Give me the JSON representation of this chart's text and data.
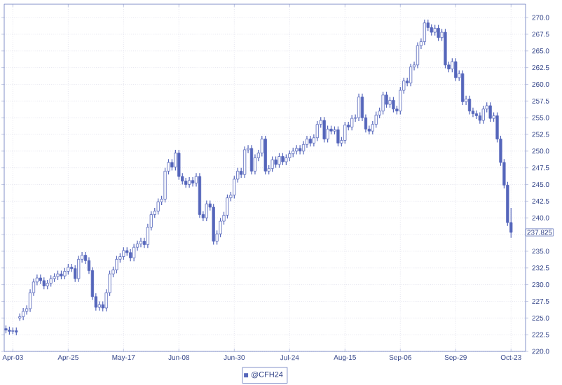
{
  "chart_data": {
    "type": "candlestick",
    "categories": [
      null,
      null,
      "Apr-03",
      null,
      null,
      null,
      null,
      null,
      null,
      null,
      null,
      null,
      null,
      null,
      null,
      null,
      null,
      null,
      "Apr-25",
      null,
      null,
      null,
      null,
      null,
      null,
      null,
      null,
      null,
      null,
      null,
      null,
      null,
      null,
      null,
      "May-17",
      null,
      null,
      null,
      null,
      null,
      null,
      null,
      null,
      null,
      null,
      null,
      null,
      null,
      null,
      null,
      "Jun-08",
      null,
      null,
      null,
      null,
      null,
      null,
      null,
      null,
      null,
      null,
      null,
      null,
      null,
      null,
      null,
      "Jun-30",
      null,
      null,
      null,
      null,
      null,
      null,
      null,
      null,
      null,
      null,
      null,
      null,
      null,
      null,
      null,
      "Jul-24",
      null,
      null,
      null,
      null,
      null,
      null,
      null,
      null,
      null,
      null,
      null,
      null,
      null,
      null,
      null,
      "Aug-15",
      null,
      null,
      null,
      null,
      null,
      null,
      null,
      null,
      null,
      null,
      null,
      null,
      null,
      null,
      null,
      "Sep-06",
      null,
      null,
      null,
      null,
      null,
      null,
      null,
      null,
      null,
      null,
      null,
      null,
      null,
      null,
      null,
      "Sep-29",
      null,
      null,
      null,
      null,
      null,
      null,
      null,
      null,
      null,
      null,
      null,
      null,
      null,
      null,
      null,
      "Oct-23"
    ],
    "series": [
      {
        "name": "@CFH24",
        "color": "#5566bb",
        "ohlc": [
          [
            223.4,
            223.9,
            222.7,
            223.2
          ],
          [
            223.2,
            223.7,
            222.5,
            223.0
          ],
          [
            223.0,
            223.6,
            222.6,
            223.1
          ],
          [
            223.1,
            223.6,
            222.4,
            222.9
          ],
          [
            225.0,
            225.7,
            224.6,
            225.2
          ],
          [
            225.2,
            226.5,
            224.7,
            226.0
          ],
          [
            226.0,
            226.9,
            225.5,
            226.4
          ],
          [
            226.4,
            229.3,
            225.9,
            228.8
          ],
          [
            228.8,
            230.9,
            228.3,
            230.4
          ],
          [
            230.4,
            231.5,
            229.9,
            231.0
          ],
          [
            231.0,
            231.5,
            230.1,
            230.6
          ],
          [
            230.6,
            231.1,
            229.3,
            229.8
          ],
          [
            229.8,
            230.7,
            229.3,
            230.2
          ],
          [
            230.2,
            231.4,
            229.7,
            230.9
          ],
          [
            230.9,
            231.7,
            230.4,
            231.2
          ],
          [
            231.2,
            232.1,
            230.7,
            231.6
          ],
          [
            231.6,
            232.1,
            230.8,
            231.3
          ],
          [
            231.3,
            232.5,
            230.8,
            232.0
          ],
          [
            232.0,
            233.1,
            231.5,
            232.6
          ],
          [
            232.6,
            233.1,
            231.9,
            232.4
          ],
          [
            232.4,
            232.9,
            230.4,
            230.9
          ],
          [
            230.9,
            234.3,
            230.4,
            233.8
          ],
          [
            233.8,
            234.9,
            233.3,
            234.4
          ],
          [
            234.4,
            234.9,
            233.1,
            233.6
          ],
          [
            233.6,
            234.1,
            231.6,
            232.1
          ],
          [
            232.1,
            232.6,
            227.7,
            228.2
          ],
          [
            228.2,
            228.7,
            226.1,
            226.6
          ],
          [
            226.6,
            227.5,
            226.1,
            227.0
          ],
          [
            227.0,
            227.5,
            226.0,
            226.5
          ],
          [
            226.5,
            229.3,
            226.0,
            228.8
          ],
          [
            228.8,
            232.1,
            228.3,
            231.6
          ],
          [
            231.6,
            232.7,
            231.1,
            232.2
          ],
          [
            232.2,
            234.3,
            231.7,
            233.8
          ],
          [
            233.8,
            234.7,
            233.3,
            234.2
          ],
          [
            234.2,
            235.6,
            233.7,
            235.1
          ],
          [
            235.1,
            235.6,
            234.3,
            234.8
          ],
          [
            234.8,
            235.3,
            233.5,
            234.0
          ],
          [
            234.0,
            236.1,
            233.5,
            235.6
          ],
          [
            235.6,
            236.6,
            235.1,
            236.1
          ],
          [
            236.1,
            237.0,
            235.6,
            236.5
          ],
          [
            236.5,
            237.0,
            235.5,
            236.0
          ],
          [
            236.0,
            239.1,
            235.5,
            238.6
          ],
          [
            238.6,
            241.0,
            238.1,
            240.5
          ],
          [
            240.5,
            241.5,
            240.0,
            241.0
          ],
          [
            241.0,
            242.9,
            240.5,
            242.4
          ],
          [
            242.4,
            243.3,
            241.9,
            242.8
          ],
          [
            242.8,
            247.5,
            242.3,
            247.0
          ],
          [
            247.0,
            248.8,
            246.5,
            248.3
          ],
          [
            248.3,
            248.8,
            247.1,
            247.6
          ],
          [
            247.6,
            250.2,
            247.1,
            249.7
          ],
          [
            249.7,
            250.2,
            245.7,
            246.2
          ],
          [
            246.2,
            246.7,
            245.0,
            245.5
          ],
          [
            245.5,
            246.0,
            244.5,
            245.0
          ],
          [
            245.0,
            246.1,
            244.5,
            245.6
          ],
          [
            245.6,
            246.1,
            244.7,
            245.2
          ],
          [
            245.2,
            246.7,
            244.7,
            246.2
          ],
          [
            246.2,
            246.7,
            240.0,
            240.5
          ],
          [
            240.5,
            241.0,
            239.5,
            240.0
          ],
          [
            240.0,
            242.6,
            239.5,
            242.1
          ],
          [
            242.1,
            242.6,
            241.1,
            241.6
          ],
          [
            241.6,
            242.1,
            236.0,
            236.5
          ],
          [
            236.5,
            238.1,
            236.0,
            237.6
          ],
          [
            237.6,
            240.0,
            237.1,
            239.5
          ],
          [
            239.5,
            240.9,
            239.0,
            240.4
          ],
          [
            240.4,
            243.5,
            239.9,
            243.0
          ],
          [
            243.0,
            243.9,
            242.5,
            243.4
          ],
          [
            243.4,
            246.3,
            242.9,
            245.8
          ],
          [
            245.8,
            247.5,
            245.3,
            247.0
          ],
          [
            247.0,
            247.5,
            246.0,
            246.5
          ],
          [
            246.5,
            250.7,
            246.0,
            250.2
          ],
          [
            250.2,
            250.9,
            249.7,
            250.4
          ],
          [
            250.4,
            250.9,
            246.5,
            247.0
          ],
          [
            247.0,
            249.5,
            246.5,
            249.0
          ],
          [
            249.0,
            250.2,
            248.5,
            249.7
          ],
          [
            249.7,
            252.3,
            249.2,
            251.8
          ],
          [
            251.8,
            252.3,
            246.5,
            247.0
          ],
          [
            247.0,
            247.9,
            246.5,
            247.4
          ],
          [
            247.4,
            249.2,
            246.9,
            248.7
          ],
          [
            248.7,
            249.2,
            247.5,
            248.0
          ],
          [
            248.0,
            249.7,
            247.5,
            249.2
          ],
          [
            249.2,
            249.7,
            247.9,
            248.4
          ],
          [
            248.4,
            249.5,
            247.9,
            249.0
          ],
          [
            249.0,
            250.1,
            248.5,
            249.6
          ],
          [
            249.6,
            250.5,
            249.1,
            250.0
          ],
          [
            250.0,
            250.9,
            249.5,
            250.4
          ],
          [
            250.4,
            250.9,
            249.5,
            250.0
          ],
          [
            250.0,
            251.5,
            249.5,
            251.0
          ],
          [
            251.0,
            252.3,
            250.5,
            251.8
          ],
          [
            251.8,
            252.3,
            250.7,
            251.2
          ],
          [
            251.2,
            252.5,
            250.7,
            252.0
          ],
          [
            252.0,
            254.5,
            251.5,
            254.0
          ],
          [
            254.0,
            255.1,
            253.5,
            254.6
          ],
          [
            254.6,
            255.1,
            251.3,
            251.8
          ],
          [
            251.8,
            253.8,
            251.3,
            253.3
          ],
          [
            253.3,
            253.8,
            252.5,
            253.0
          ],
          [
            253.0,
            253.7,
            252.5,
            253.2
          ],
          [
            253.2,
            253.7,
            250.7,
            251.2
          ],
          [
            251.2,
            252.1,
            250.7,
            251.6
          ],
          [
            251.6,
            254.4,
            251.1,
            253.9
          ],
          [
            253.9,
            254.4,
            253.1,
            253.6
          ],
          [
            253.6,
            255.4,
            253.1,
            254.9
          ],
          [
            254.9,
            255.5,
            254.4,
            255.0
          ],
          [
            255.0,
            258.6,
            254.5,
            258.1
          ],
          [
            258.1,
            258.6,
            254.5,
            255.0
          ],
          [
            255.0,
            255.5,
            252.8,
            253.3
          ],
          [
            253.3,
            253.8,
            252.5,
            253.0
          ],
          [
            253.0,
            254.5,
            252.5,
            254.0
          ],
          [
            254.0,
            255.9,
            253.5,
            255.4
          ],
          [
            255.4,
            256.5,
            254.9,
            256.0
          ],
          [
            256.0,
            258.9,
            255.5,
            258.4
          ],
          [
            258.4,
            258.9,
            256.5,
            257.0
          ],
          [
            257.0,
            258.1,
            256.5,
            257.6
          ],
          [
            257.6,
            258.1,
            255.8,
            256.3
          ],
          [
            256.3,
            256.8,
            255.5,
            256.0
          ],
          [
            256.0,
            259.6,
            255.5,
            259.1
          ],
          [
            259.1,
            261.0,
            258.6,
            260.5
          ],
          [
            260.5,
            261.0,
            259.7,
            260.2
          ],
          [
            260.2,
            263.1,
            259.7,
            262.6
          ],
          [
            262.6,
            263.4,
            262.1,
            262.9
          ],
          [
            262.9,
            266.3,
            262.4,
            265.8
          ],
          [
            265.8,
            266.9,
            265.3,
            266.4
          ],
          [
            266.4,
            269.7,
            265.9,
            269.2
          ],
          [
            269.2,
            269.7,
            268.0,
            268.5
          ],
          [
            268.5,
            269.0,
            267.3,
            267.8
          ],
          [
            267.8,
            268.9,
            267.3,
            268.4
          ],
          [
            268.4,
            268.9,
            266.5,
            267.0
          ],
          [
            267.0,
            268.3,
            266.5,
            267.8
          ],
          [
            267.8,
            268.3,
            262.4,
            262.9
          ],
          [
            262.9,
            263.4,
            261.8,
            262.3
          ],
          [
            262.3,
            263.9,
            261.8,
            263.4
          ],
          [
            263.4,
            263.9,
            260.5,
            261.0
          ],
          [
            261.0,
            262.1,
            260.5,
            261.6
          ],
          [
            261.6,
            262.1,
            256.9,
            257.4
          ],
          [
            257.4,
            258.3,
            256.9,
            257.8
          ],
          [
            257.8,
            258.3,
            255.5,
            256.0
          ],
          [
            256.0,
            256.5,
            255.1,
            255.6
          ],
          [
            255.6,
            256.1,
            254.8,
            255.3
          ],
          [
            255.3,
            255.8,
            254.1,
            254.6
          ],
          [
            254.6,
            256.8,
            254.1,
            256.3
          ],
          [
            256.3,
            257.3,
            255.8,
            256.8
          ],
          [
            256.8,
            257.3,
            254.4,
            254.9
          ],
          [
            254.9,
            255.8,
            254.4,
            255.3
          ],
          [
            255.3,
            255.8,
            251.3,
            251.8
          ],
          [
            251.8,
            252.3,
            247.8,
            248.3
          ],
          [
            248.3,
            248.8,
            244.4,
            244.9
          ],
          [
            244.9,
            245.4,
            238.8,
            239.3
          ],
          [
            239.3,
            241.5,
            237.0,
            237.825
          ]
        ]
      }
    ],
    "ylim": [
      220,
      272
    ],
    "yticks": [
      {
        "value": 220,
        "label": "220.0"
      },
      {
        "value": 222.5,
        "label": "222.5"
      },
      {
        "value": 225,
        "label": "225.0"
      },
      {
        "value": 227.5,
        "label": "227.5"
      },
      {
        "value": 230,
        "label": "230.0"
      },
      {
        "value": 232.5,
        "label": "232.5"
      },
      {
        "value": 235,
        "label": "235.0"
      },
      {
        "value": 237.5,
        "label": null
      },
      {
        "value": 240,
        "label": "240.0"
      },
      {
        "value": 242.5,
        "label": "242.5"
      },
      {
        "value": 245,
        "label": "245.0"
      },
      {
        "value": 247.5,
        "label": "247.5"
      },
      {
        "value": 250,
        "label": "250.0"
      },
      {
        "value": 252.5,
        "label": "252.5"
      },
      {
        "value": 255,
        "label": "255.0"
      },
      {
        "value": 257.5,
        "label": "257.5"
      },
      {
        "value": 260,
        "label": "260.0"
      },
      {
        "value": 262.5,
        "label": "262.5"
      },
      {
        "value": 265,
        "label": "265.0"
      },
      {
        "value": 267.5,
        "label": "267.5"
      },
      {
        "value": 270,
        "label": "270.0"
      }
    ],
    "annotations": [
      "237.825"
    ],
    "grid": true,
    "legend": "bottom"
  }
}
